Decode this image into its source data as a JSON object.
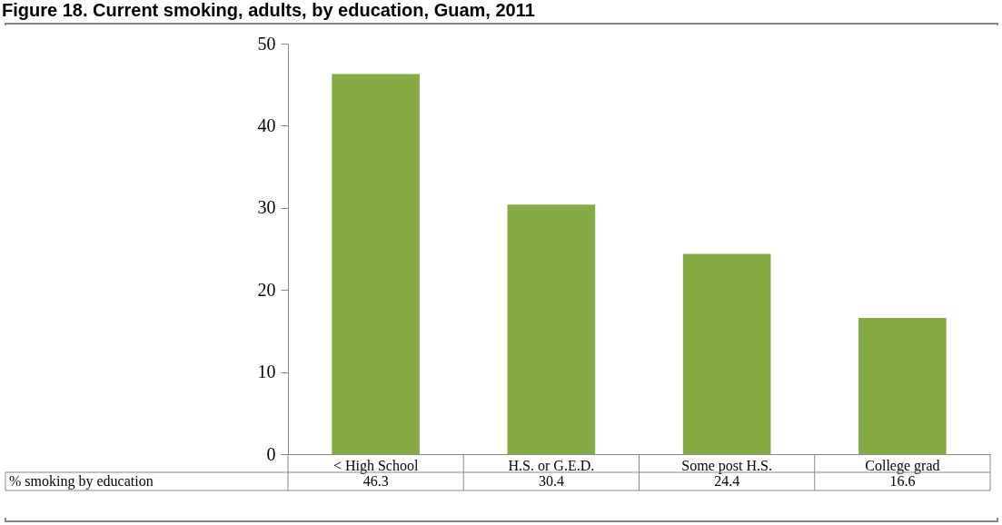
{
  "chart_data": {
    "type": "bar",
    "title": "Figure 18. Current smoking, adults, by education, Guam, 2011",
    "categories": [
      "< High School",
      "H.S. or G.E.D.",
      "Some post H.S.",
      "College grad"
    ],
    "series": [
      {
        "name": "% smoking by education",
        "color": "#86ab45",
        "values": [
          46.3,
          30.4,
          24.4,
          16.6
        ]
      }
    ],
    "ylim": [
      0,
      50
    ],
    "yticks": [
      0,
      10,
      20,
      30,
      40,
      50
    ],
    "grid": false,
    "legend": false,
    "data_labels": true
  }
}
